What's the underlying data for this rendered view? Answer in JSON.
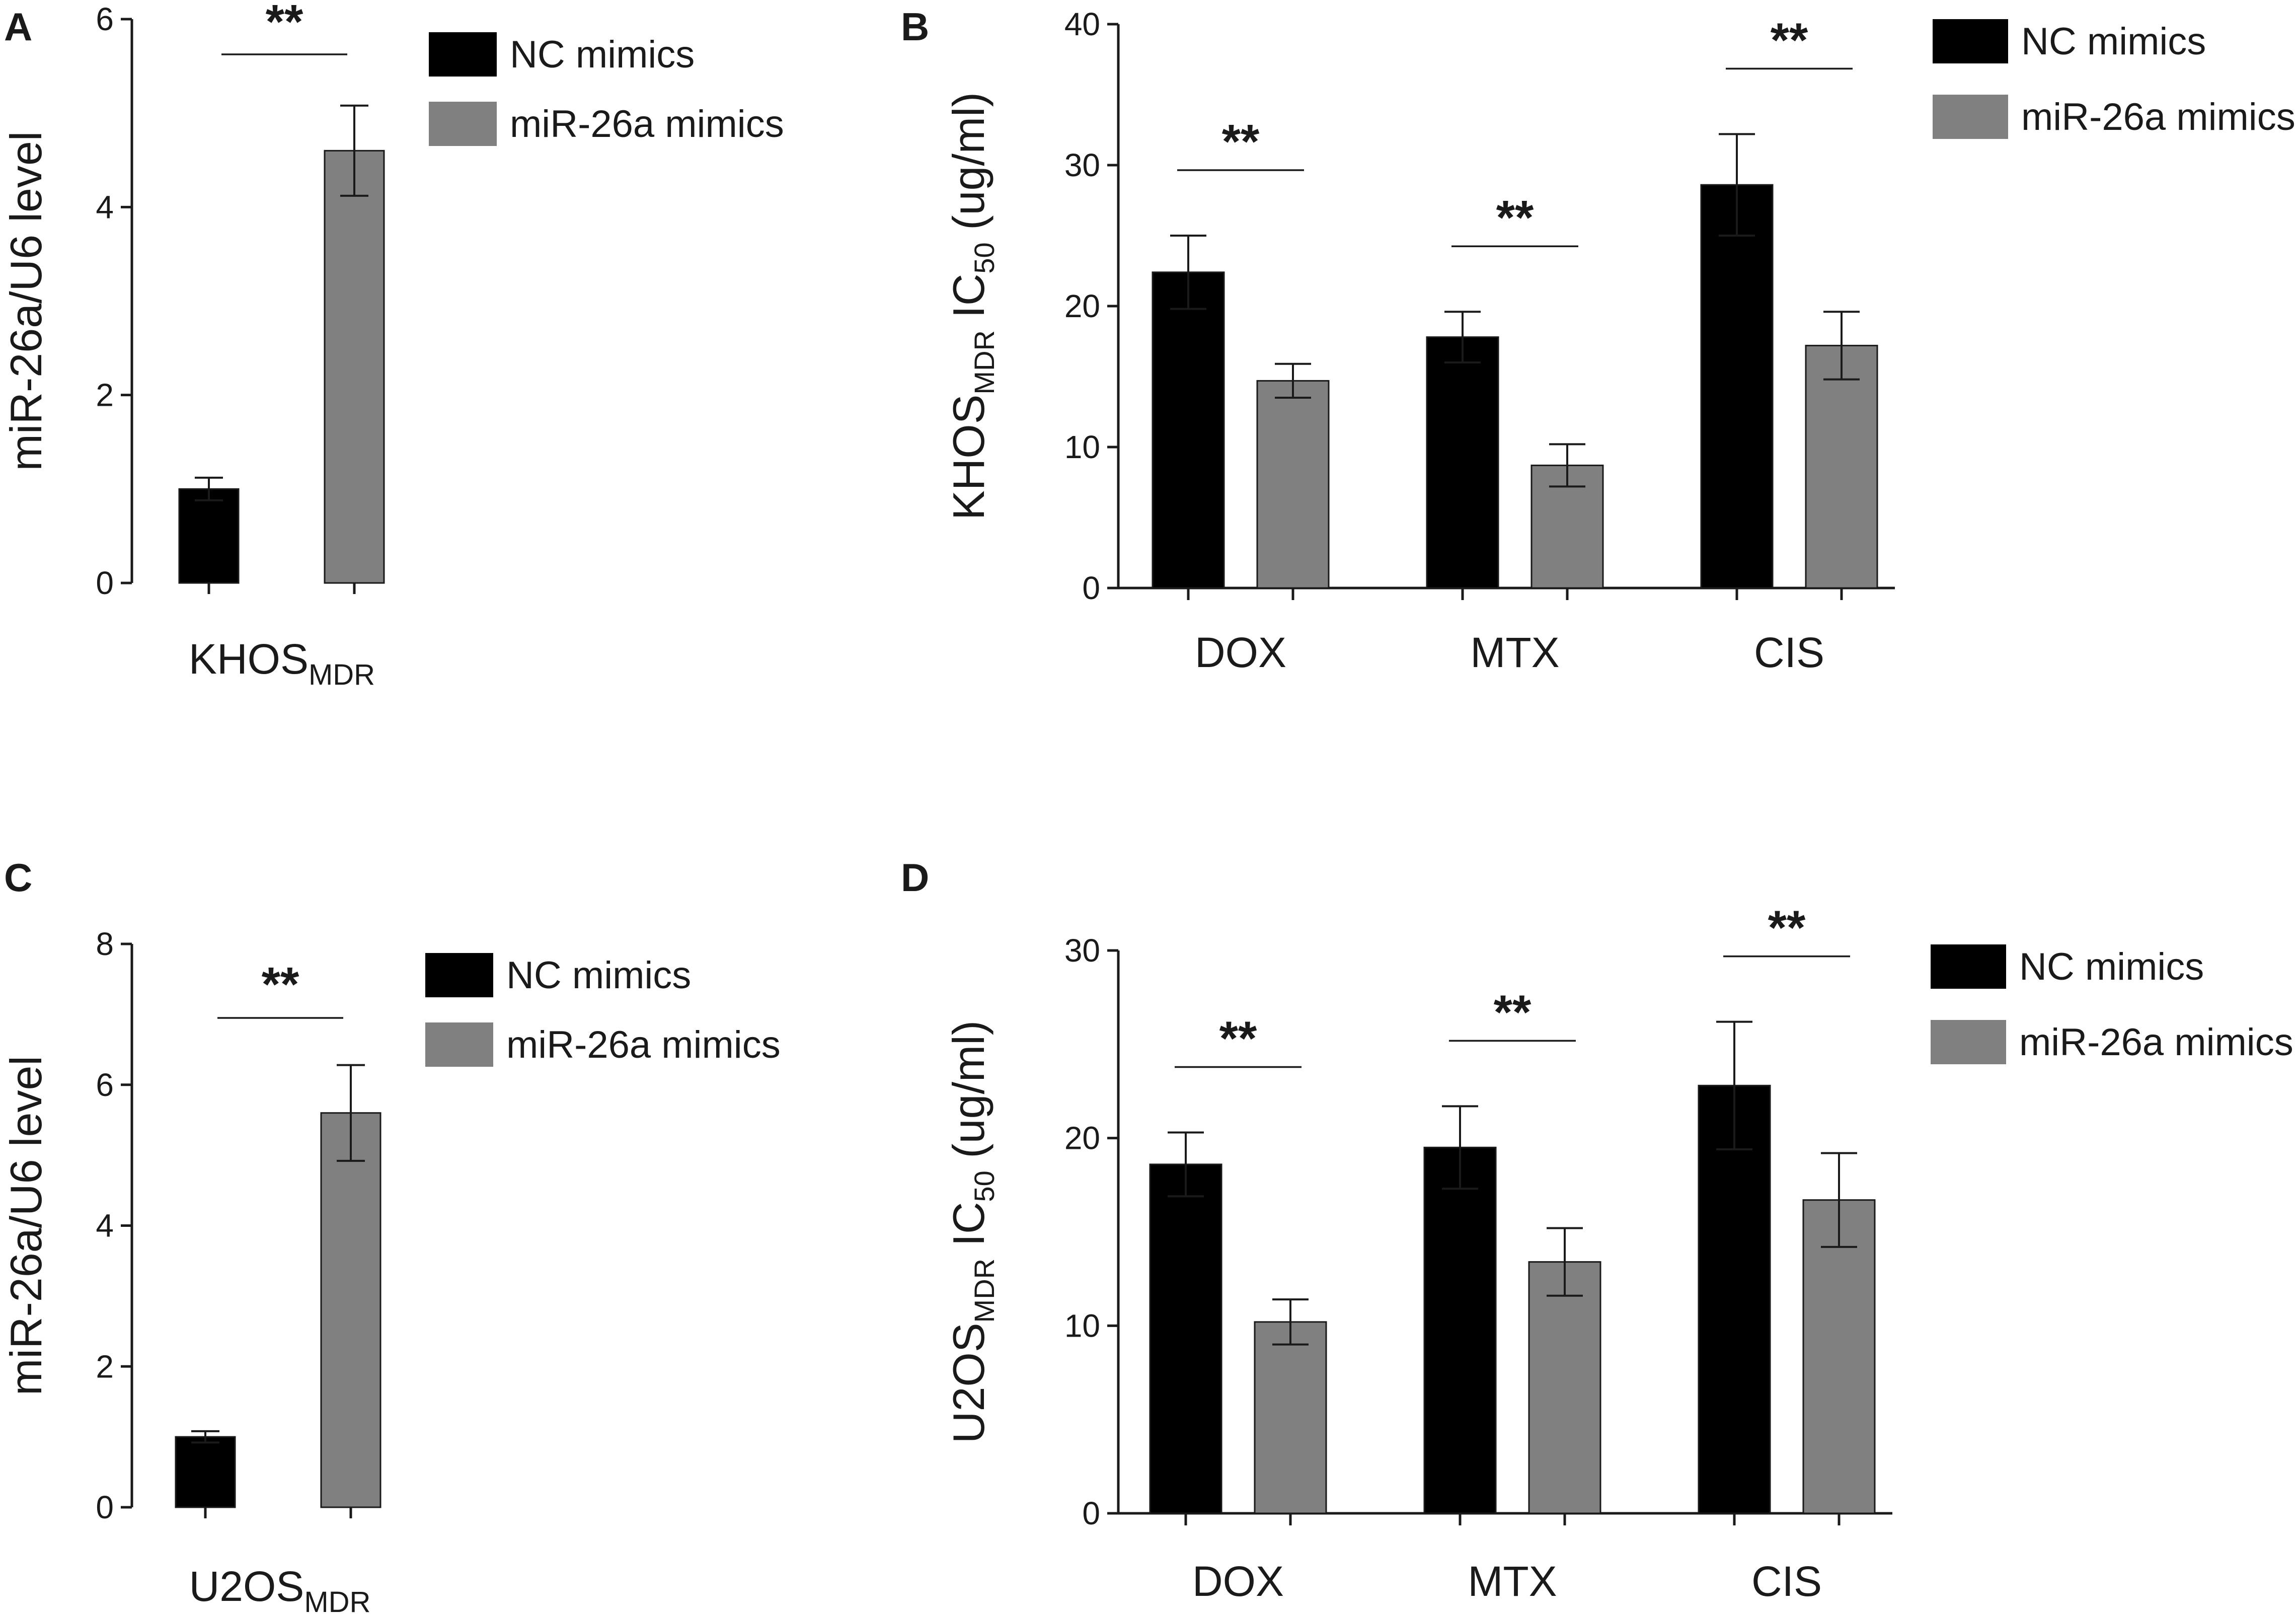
{
  "colors": {
    "nc": "#000000",
    "mir": "#808080",
    "axis": "#1a1a1a"
  },
  "chart_data": [
    {
      "id": "A",
      "panel_label": "A",
      "type": "bar",
      "ylabel": "miR-26a/U6 level",
      "ylim": [
        0,
        6
      ],
      "yticks": [
        "0",
        "2",
        "4",
        "6"
      ],
      "category": {
        "main": "KHOS",
        "sub": "MDR"
      },
      "series": [
        {
          "name": "NC mimics",
          "value": 1.0,
          "err": 0.12
        },
        {
          "name": "miR-26a mimics",
          "value": 4.6,
          "err": 0.48
        }
      ],
      "significance": [
        {
          "label": "**"
        }
      ],
      "legend": [
        "NC mimics",
        "miR-26a mimics"
      ]
    },
    {
      "id": "B",
      "panel_label": "B",
      "type": "bar",
      "ylabel": {
        "pre": "KHOS",
        "pre_sub": "MDR",
        "mid": " IC",
        "mid_sub": "50",
        "post": " (ug/ml)"
      },
      "ylim": [
        0,
        40
      ],
      "yticks": [
        "0",
        "10",
        "20",
        "30",
        "40"
      ],
      "categories": [
        "DOX",
        "MTX",
        "CIS"
      ],
      "series": [
        {
          "name": "NC mimics",
          "values": [
            22.4,
            17.8,
            28.6
          ],
          "errors": [
            2.6,
            1.8,
            3.6
          ]
        },
        {
          "name": "miR-26a mimics",
          "values": [
            14.7,
            8.7,
            17.2
          ],
          "errors": [
            1.2,
            1.5,
            2.4
          ]
        }
      ],
      "significance": [
        {
          "label": "**"
        },
        {
          "label": "**"
        },
        {
          "label": "**"
        }
      ],
      "legend": [
        "NC mimics",
        "miR-26a mimics"
      ]
    },
    {
      "id": "C",
      "panel_label": "C",
      "type": "bar",
      "ylabel": "miR-26a/U6 level",
      "ylim": [
        0,
        8
      ],
      "yticks": [
        "0",
        "2",
        "4",
        "6",
        "8"
      ],
      "category": {
        "main": "U2OS",
        "sub": "MDR"
      },
      "series": [
        {
          "name": "NC mimics",
          "value": 1.0,
          "err": 0.08
        },
        {
          "name": "miR-26a mimics",
          "value": 5.6,
          "err": 0.68
        }
      ],
      "significance": [
        {
          "label": "**"
        }
      ],
      "legend": [
        "NC mimics",
        "miR-26a mimics"
      ]
    },
    {
      "id": "D",
      "panel_label": "D",
      "type": "bar",
      "ylabel": {
        "pre": "U2OS",
        "pre_sub": "MDR",
        "mid": " IC",
        "mid_sub": "50",
        "post": " (ug/ml)"
      },
      "ylim": [
        0,
        30
      ],
      "yticks": [
        "0",
        "10",
        "20",
        "30"
      ],
      "categories": [
        "DOX",
        "MTX",
        "CIS"
      ],
      "series": [
        {
          "name": "NC mimics",
          "values": [
            18.6,
            19.5,
            22.8
          ],
          "errors": [
            1.7,
            2.2,
            3.4
          ]
        },
        {
          "name": "miR-26a mimics",
          "values": [
            10.2,
            13.4,
            16.7
          ],
          "errors": [
            1.2,
            1.8,
            2.5
          ]
        }
      ],
      "significance": [
        {
          "label": "**"
        },
        {
          "label": "**"
        },
        {
          "label": "**"
        }
      ],
      "legend": [
        "NC mimics",
        "miR-26a mimics"
      ]
    }
  ]
}
